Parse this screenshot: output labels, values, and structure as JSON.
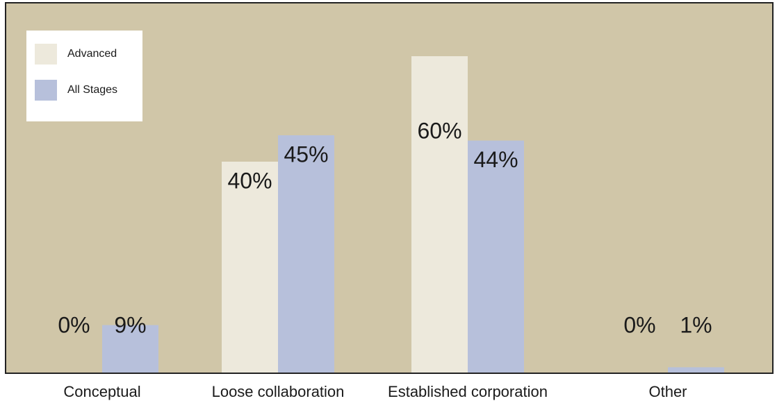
{
  "chart_data": {
    "type": "bar",
    "categories": [
      "Conceptual",
      "Loose collaboration",
      "Established corporation",
      "Other"
    ],
    "series": [
      {
        "name": "Advanced",
        "color": "#ede9dc",
        "values": [
          0,
          40,
          60,
          0
        ],
        "value_labels": [
          "0%",
          "40%",
          "60%",
          "0%"
        ]
      },
      {
        "name": "All Stages",
        "color": "#b7c0db",
        "values": [
          9,
          45,
          44,
          1
        ],
        "value_labels": [
          "9%",
          "45%",
          "44%",
          "1%"
        ]
      }
    ],
    "legend": "upper left"
  }
}
